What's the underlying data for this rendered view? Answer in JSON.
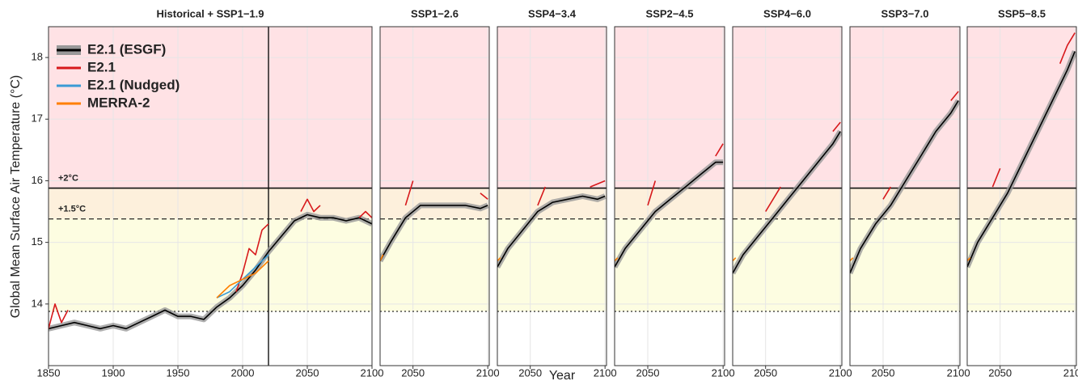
{
  "chart_data": [
    {
      "type": "line",
      "title": "Historical + SSP1−1.9",
      "xlabel": "Year",
      "ylabel": "Global Mean Surface Air Temperature (°C)",
      "xlim": [
        1850,
        2100
      ],
      "ylim": [
        13,
        18.5
      ],
      "xticks": [
        1850,
        1900,
        1950,
        2000,
        2050,
        2100
      ],
      "yticks": [
        14,
        15,
        16,
        17,
        18
      ],
      "grid": true,
      "vline": 2020,
      "band_colors": [
        "#ffe2e5",
        "#fdf0dc",
        "#fdfde1"
      ],
      "reference_lines": [
        {
          "value": 15.88,
          "label": "+2°C",
          "style": "solid"
        },
        {
          "value": 15.38,
          "label": "+1.5°C",
          "style": "dashed"
        },
        {
          "value": 13.88,
          "style": "dotted"
        }
      ],
      "series": [
        {
          "name": "E2.1 (ESGF)",
          "color": "#000000",
          "x": [
            1850,
            1860,
            1870,
            1880,
            1890,
            1900,
            1910,
            1920,
            1930,
            1940,
            1950,
            1960,
            1970,
            1980,
            1990,
            2000,
            2010,
            2020,
            2030,
            2040,
            2050,
            2060,
            2070,
            2080,
            2090,
            2100
          ],
          "values": [
            13.6,
            13.65,
            13.7,
            13.65,
            13.6,
            13.65,
            13.6,
            13.7,
            13.8,
            13.9,
            13.8,
            13.8,
            13.75,
            13.95,
            14.1,
            14.3,
            14.55,
            14.85,
            15.1,
            15.35,
            15.45,
            15.4,
            15.4,
            15.35,
            15.4,
            15.3
          ]
        },
        {
          "name": "E2.1",
          "color": "#d7191c",
          "x": [
            1850,
            1855,
            1860,
            1865,
            null,
            1995,
            2000,
            2005,
            2010,
            2015,
            2020,
            null,
            2045,
            2050,
            2055,
            2060,
            null,
            2090,
            2095,
            2100
          ],
          "values": [
            13.6,
            14.0,
            13.7,
            13.9,
            null,
            14.2,
            14.5,
            14.9,
            14.8,
            15.2,
            15.3,
            null,
            15.5,
            15.7,
            15.5,
            15.6,
            null,
            15.4,
            15.5,
            15.4
          ]
        },
        {
          "name": "E2.1 (Nudged)",
          "color": "#3a9bd5",
          "x": [
            1980,
            1990,
            2000,
            2010,
            2020
          ],
          "values": [
            14.1,
            14.2,
            14.4,
            14.6,
            14.8
          ]
        },
        {
          "name": "MERRA-2",
          "color": "#ff7f00",
          "x": [
            1980,
            1990,
            2000,
            2010,
            2020
          ],
          "values": [
            14.1,
            14.3,
            14.4,
            14.5,
            14.7
          ]
        }
      ]
    },
    {
      "type": "line",
      "title": "SSP1−2.6",
      "xlim": [
        2028,
        2101
      ],
      "ylim": [
        13,
        18.5
      ],
      "xticks": [
        2050,
        2100
      ],
      "grid": true,
      "band_colors": [
        "#ffe2e5",
        "#fdf0dc",
        "#fdfde1"
      ],
      "reference_lines": [
        {
          "value": 15.88,
          "style": "solid"
        },
        {
          "value": 15.38,
          "style": "dashed"
        },
        {
          "value": 13.88,
          "style": "dotted"
        }
      ],
      "series": [
        {
          "color": "#000000",
          "x": [
            2028,
            2035,
            2045,
            2055,
            2065,
            2075,
            2085,
            2095,
            2100
          ],
          "values": [
            14.7,
            15.0,
            15.4,
            15.6,
            15.6,
            15.6,
            15.6,
            15.55,
            15.6
          ]
        },
        {
          "color": "#d7191c",
          "x": [
            2045,
            2050,
            null,
            2095,
            2100
          ],
          "values": [
            15.6,
            16.0,
            null,
            15.8,
            15.7
          ]
        },
        {
          "color": "#ff7f00",
          "x": [
            2028,
            2030
          ],
          "values": [
            14.7,
            14.8
          ]
        }
      ]
    },
    {
      "type": "line",
      "title": "SSP4−3.4",
      "xlim": [
        2028,
        2101
      ],
      "ylim": [
        13,
        18.5
      ],
      "xticks": [
        2050,
        2100
      ],
      "grid": true,
      "band_colors": [
        "#ffe2e5",
        "#fdf0dc",
        "#fdfde1"
      ],
      "reference_lines": [
        {
          "value": 15.88,
          "style": "solid"
        },
        {
          "value": 15.38,
          "style": "dashed"
        },
        {
          "value": 13.88,
          "style": "dotted"
        }
      ],
      "series": [
        {
          "color": "#000000",
          "x": [
            2028,
            2035,
            2045,
            2055,
            2065,
            2075,
            2085,
            2095,
            2100
          ],
          "values": [
            14.6,
            14.9,
            15.2,
            15.5,
            15.65,
            15.7,
            15.75,
            15.7,
            15.75
          ]
        },
        {
          "color": "#d7191c",
          "x": [
            2055,
            2060,
            null,
            2090,
            2100
          ],
          "values": [
            15.6,
            15.9,
            null,
            15.9,
            16.0
          ]
        },
        {
          "color": "#ff7f00",
          "x": [
            2028,
            2030
          ],
          "values": [
            14.7,
            14.75
          ]
        }
      ]
    },
    {
      "type": "line",
      "title": "SSP2−4.5",
      "xlim": [
        2028,
        2101
      ],
      "ylim": [
        13,
        18.5
      ],
      "xticks": [
        2050,
        2100
      ],
      "grid": true,
      "band_colors": [
        "#ffe2e5",
        "#fdf0dc",
        "#fdfde1"
      ],
      "reference_lines": [
        {
          "value": 15.88,
          "style": "solid"
        },
        {
          "value": 15.38,
          "style": "dashed"
        },
        {
          "value": 13.88,
          "style": "dotted"
        }
      ],
      "series": [
        {
          "color": "#000000",
          "x": [
            2028,
            2035,
            2045,
            2055,
            2065,
            2075,
            2085,
            2095,
            2100
          ],
          "values": [
            14.6,
            14.9,
            15.2,
            15.5,
            15.7,
            15.9,
            16.1,
            16.3,
            16.3
          ]
        },
        {
          "color": "#d7191c",
          "x": [
            2050,
            2055,
            null,
            2095,
            2100
          ],
          "values": [
            15.6,
            16.0,
            null,
            16.4,
            16.6
          ]
        },
        {
          "color": "#ff7f00",
          "x": [
            2028,
            2030
          ],
          "values": [
            14.7,
            14.75
          ]
        }
      ]
    },
    {
      "type": "line",
      "title": "SSP4−6.0",
      "xlim": [
        2028,
        2101
      ],
      "ylim": [
        13,
        18.5
      ],
      "xticks": [
        2050,
        2100
      ],
      "grid": true,
      "band_colors": [
        "#ffe2e5",
        "#fdf0dc",
        "#fdfde1"
      ],
      "reference_lines": [
        {
          "value": 15.88,
          "style": "solid"
        },
        {
          "value": 15.38,
          "style": "dashed"
        },
        {
          "value": 13.88,
          "style": "dotted"
        }
      ],
      "series": [
        {
          "color": "#000000",
          "x": [
            2028,
            2035,
            2045,
            2055,
            2065,
            2075,
            2085,
            2095,
            2100
          ],
          "values": [
            14.5,
            14.8,
            15.1,
            15.4,
            15.7,
            16.0,
            16.3,
            16.6,
            16.8
          ]
        },
        {
          "color": "#d7191c",
          "x": [
            2050,
            2060,
            null,
            2095,
            2100
          ],
          "values": [
            15.5,
            15.9,
            null,
            16.8,
            16.95
          ]
        },
        {
          "color": "#ff7f00",
          "x": [
            2028,
            2030
          ],
          "values": [
            14.7,
            14.75
          ]
        }
      ]
    },
    {
      "type": "line",
      "title": "SSP3−7.0",
      "xlim": [
        2028,
        2101
      ],
      "ylim": [
        13,
        18.5
      ],
      "xticks": [
        2050,
        2100
      ],
      "grid": true,
      "band_colors": [
        "#ffe2e5",
        "#fdf0dc",
        "#fdfde1"
      ],
      "reference_lines": [
        {
          "value": 15.88,
          "style": "solid"
        },
        {
          "value": 15.38,
          "style": "dashed"
        },
        {
          "value": 13.88,
          "style": "dotted"
        }
      ],
      "series": [
        {
          "color": "#000000",
          "x": [
            2028,
            2035,
            2045,
            2055,
            2065,
            2075,
            2085,
            2095,
            2100
          ],
          "values": [
            14.5,
            14.9,
            15.3,
            15.6,
            16.0,
            16.4,
            16.8,
            17.1,
            17.3
          ]
        },
        {
          "color": "#d7191c",
          "x": [
            2050,
            2055,
            null,
            2095,
            2100
          ],
          "values": [
            15.7,
            15.9,
            null,
            17.3,
            17.45
          ]
        },
        {
          "color": "#ff7f00",
          "x": [
            2028,
            2030
          ],
          "values": [
            14.7,
            14.75
          ]
        }
      ]
    },
    {
      "type": "line",
      "title": "SSP5−8.5",
      "xlim": [
        2028,
        2101
      ],
      "ylim": [
        13,
        18.5
      ],
      "xticks": [
        2050,
        2100
      ],
      "grid": true,
      "band_colors": [
        "#ffe2e5",
        "#fdf0dc",
        "#fdfde1"
      ],
      "reference_lines": [
        {
          "value": 15.88,
          "style": "solid"
        },
        {
          "value": 15.38,
          "style": "dashed"
        },
        {
          "value": 13.88,
          "style": "dotted"
        }
      ],
      "series": [
        {
          "color": "#000000",
          "x": [
            2028,
            2035,
            2045,
            2055,
            2065,
            2075,
            2085,
            2095,
            2100
          ],
          "values": [
            14.6,
            15.0,
            15.4,
            15.8,
            16.3,
            16.8,
            17.3,
            17.8,
            18.1
          ]
        },
        {
          "color": "#d7191c",
          "x": [
            2045,
            2050,
            null,
            2090,
            2095,
            2100
          ],
          "values": [
            15.9,
            16.2,
            null,
            17.9,
            18.2,
            18.4
          ]
        },
        {
          "color": "#ff7f00",
          "x": [
            2028,
            2030
          ],
          "values": [
            14.7,
            14.75
          ]
        }
      ]
    }
  ]
}
